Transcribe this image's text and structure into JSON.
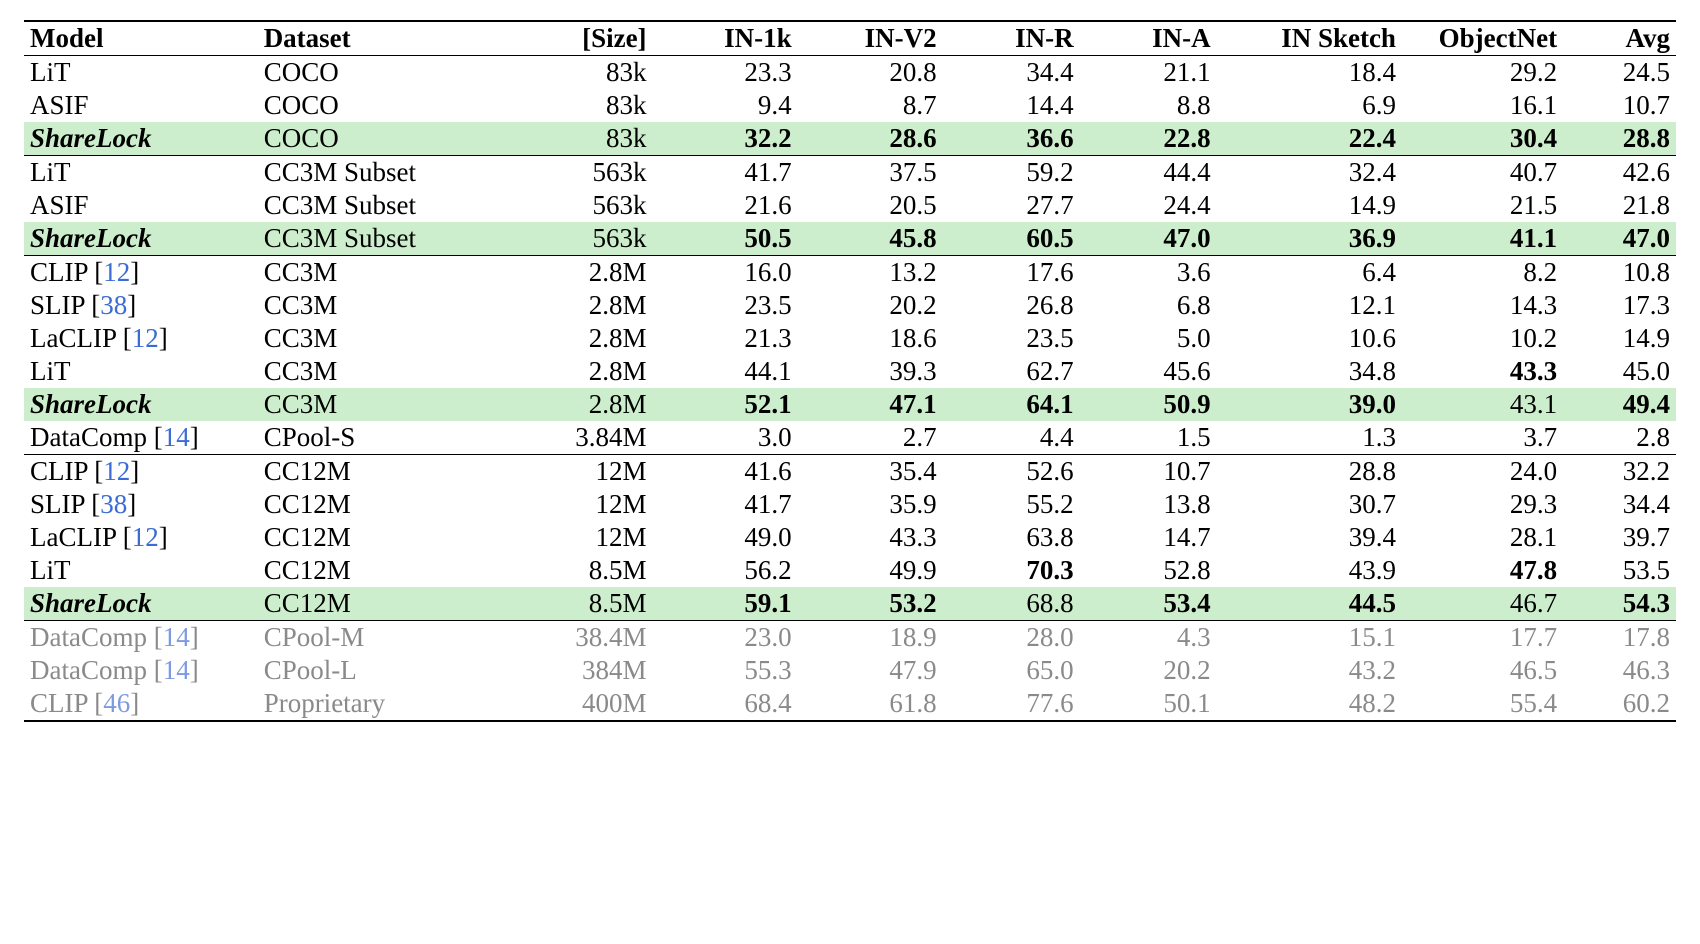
{
  "table": {
    "font_family": "Times New Roman",
    "font_size_pt": 20,
    "colors": {
      "text": "#000000",
      "muted_text": "#8a8a8a",
      "cite_link": "#3b6bd4",
      "highlight_bg": "#cdeecd",
      "rule": "#000000",
      "background": "#ffffff"
    },
    "columns": [
      {
        "key": "model",
        "label": "Model",
        "align": "left",
        "width_pct": 14.5
      },
      {
        "key": "dataset",
        "label": "Dataset",
        "align": "left",
        "width_pct": 15.0
      },
      {
        "key": "size",
        "label": "[Size]",
        "align": "right",
        "width_pct": 9.5
      },
      {
        "key": "in1k",
        "label": "IN-1k",
        "align": "right",
        "width_pct": 9.0
      },
      {
        "key": "inv2",
        "label": "IN-V2",
        "align": "right",
        "width_pct": 9.0
      },
      {
        "key": "inr",
        "label": "IN-R",
        "align": "right",
        "width_pct": 8.5
      },
      {
        "key": "ina",
        "label": "IN-A",
        "align": "right",
        "width_pct": 8.5
      },
      {
        "key": "sketch",
        "label": "IN Sketch",
        "align": "right",
        "width_pct": 11.5
      },
      {
        "key": "objnet",
        "label": "ObjectNet",
        "align": "right",
        "width_pct": 10.0
      },
      {
        "key": "avg",
        "label": "Avg",
        "align": "right",
        "width_pct": 7.0
      }
    ],
    "groups": [
      {
        "rows": [
          {
            "model": "LiT",
            "dataset": "COCO",
            "size": "83k",
            "in1k": "23.3",
            "inv2": "20.8",
            "inr": "34.4",
            "ina": "21.1",
            "sketch": "18.4",
            "objnet": "29.2",
            "avg": "24.5"
          },
          {
            "model": "ASIF",
            "dataset": "COCO",
            "size": "83k",
            "in1k": "9.4",
            "inv2": "8.7",
            "inr": "14.4",
            "ina": "8.8",
            "sketch": "6.9",
            "objnet": "16.1",
            "avg": "10.7"
          },
          {
            "model": "ShareLock",
            "model_bold_italic": true,
            "highlight": true,
            "dataset": "COCO",
            "size": "83k",
            "in1k": "32.2",
            "inv2": "28.6",
            "inr": "36.6",
            "ina": "22.8",
            "sketch": "22.4",
            "objnet": "30.4",
            "avg": "28.8",
            "bold": [
              "in1k",
              "inv2",
              "inr",
              "ina",
              "sketch",
              "objnet",
              "avg"
            ]
          }
        ]
      },
      {
        "rows": [
          {
            "model": "LiT",
            "dataset": "CC3M Subset",
            "size": "563k",
            "in1k": "41.7",
            "inv2": "37.5",
            "inr": "59.2",
            "ina": "44.4",
            "sketch": "32.4",
            "objnet": "40.7",
            "avg": "42.6"
          },
          {
            "model": "ASIF",
            "dataset": "CC3M Subset",
            "size": "563k",
            "in1k": "21.6",
            "inv2": "20.5",
            "inr": "27.7",
            "ina": "24.4",
            "sketch": "14.9",
            "objnet": "21.5",
            "avg": "21.8"
          },
          {
            "model": "ShareLock",
            "model_bold_italic": true,
            "highlight": true,
            "dataset": "CC3M Subset",
            "size": "563k",
            "in1k": "50.5",
            "inv2": "45.8",
            "inr": "60.5",
            "ina": "47.0",
            "sketch": "36.9",
            "objnet": "41.1",
            "avg": "47.0",
            "bold": [
              "in1k",
              "inv2",
              "inr",
              "ina",
              "sketch",
              "objnet",
              "avg"
            ]
          }
        ]
      },
      {
        "rows": [
          {
            "model": "CLIP",
            "cite": "12",
            "dataset": "CC3M",
            "size": "2.8M",
            "in1k": "16.0",
            "inv2": "13.2",
            "inr": "17.6",
            "ina": "3.6",
            "sketch": "6.4",
            "objnet": "8.2",
            "avg": "10.8"
          },
          {
            "model": "SLIP",
            "cite": "38",
            "dataset": "CC3M",
            "size": "2.8M",
            "in1k": "23.5",
            "inv2": "20.2",
            "inr": "26.8",
            "ina": "6.8",
            "sketch": "12.1",
            "objnet": "14.3",
            "avg": "17.3"
          },
          {
            "model": "LaCLIP",
            "cite": "12",
            "dataset": "CC3M",
            "size": "2.8M",
            "in1k": "21.3",
            "inv2": "18.6",
            "inr": "23.5",
            "ina": "5.0",
            "sketch": "10.6",
            "objnet": "10.2",
            "avg": "14.9"
          },
          {
            "model": "LiT",
            "dataset": "CC3M",
            "size": "2.8M",
            "in1k": "44.1",
            "inv2": "39.3",
            "inr": "62.7",
            "ina": "45.6",
            "sketch": "34.8",
            "objnet": "43.3",
            "avg": "45.0",
            "bold": [
              "objnet"
            ]
          },
          {
            "model": "ShareLock",
            "model_bold_italic": true,
            "highlight": true,
            "dataset": "CC3M",
            "size": "2.8M",
            "in1k": "52.1",
            "inv2": "47.1",
            "inr": "64.1",
            "ina": "50.9",
            "sketch": "39.0",
            "objnet": "43.1",
            "avg": "49.4",
            "bold": [
              "in1k",
              "inv2",
              "inr",
              "ina",
              "sketch",
              "avg"
            ]
          },
          {
            "model": "DataComp",
            "cite": "14",
            "dataset": "CPool-S",
            "size": "3.84M",
            "in1k": "3.0",
            "inv2": "2.7",
            "inr": "4.4",
            "ina": "1.5",
            "sketch": "1.3",
            "objnet": "3.7",
            "avg": "2.8"
          }
        ]
      },
      {
        "rows": [
          {
            "model": "CLIP",
            "cite": "12",
            "dataset": "CC12M",
            "size": "12M",
            "in1k": "41.6",
            "inv2": "35.4",
            "inr": "52.6",
            "ina": "10.7",
            "sketch": "28.8",
            "objnet": "24.0",
            "avg": "32.2"
          },
          {
            "model": "SLIP",
            "cite": "38",
            "dataset": "CC12M",
            "size": "12M",
            "in1k": "41.7",
            "inv2": "35.9",
            "inr": "55.2",
            "ina": "13.8",
            "sketch": "30.7",
            "objnet": "29.3",
            "avg": "34.4"
          },
          {
            "model": "LaCLIP",
            "cite": "12",
            "dataset": "CC12M",
            "size": "12M",
            "in1k": "49.0",
            "inv2": "43.3",
            "inr": "63.8",
            "ina": "14.7",
            "sketch": "39.4",
            "objnet": "28.1",
            "avg": "39.7"
          },
          {
            "model": "LiT",
            "dataset": "CC12M",
            "size": "8.5M",
            "in1k": "56.2",
            "inv2": "49.9",
            "inr": "70.3",
            "ina": "52.8",
            "sketch": "43.9",
            "objnet": "47.8",
            "avg": "53.5",
            "bold": [
              "inr",
              "objnet"
            ]
          },
          {
            "model": "ShareLock",
            "model_bold_italic": true,
            "highlight": true,
            "dataset": "CC12M",
            "size": "8.5M",
            "in1k": "59.1",
            "inv2": "53.2",
            "inr": "68.8",
            "ina": "53.4",
            "sketch": "44.5",
            "objnet": "46.7",
            "avg": "54.3",
            "bold": [
              "in1k",
              "inv2",
              "ina",
              "sketch",
              "avg"
            ]
          }
        ]
      },
      {
        "muted": true,
        "rows": [
          {
            "model": "DataComp",
            "cite": "14",
            "dataset": "CPool-M",
            "size": "38.4M",
            "in1k": "23.0",
            "inv2": "18.9",
            "inr": "28.0",
            "ina": "4.3",
            "sketch": "15.1",
            "objnet": "17.7",
            "avg": "17.8"
          },
          {
            "model": "DataComp",
            "cite": "14",
            "dataset": "CPool-L",
            "size": "384M",
            "in1k": "55.3",
            "inv2": "47.9",
            "inr": "65.0",
            "ina": "20.2",
            "sketch": "43.2",
            "objnet": "46.5",
            "avg": "46.3"
          },
          {
            "model": "CLIP",
            "cite": "46",
            "dataset": "Proprietary",
            "size": "400M",
            "in1k": "68.4",
            "inv2": "61.8",
            "inr": "77.6",
            "ina": "50.1",
            "sketch": "48.2",
            "objnet": "55.4",
            "avg": "60.2"
          }
        ]
      }
    ]
  }
}
